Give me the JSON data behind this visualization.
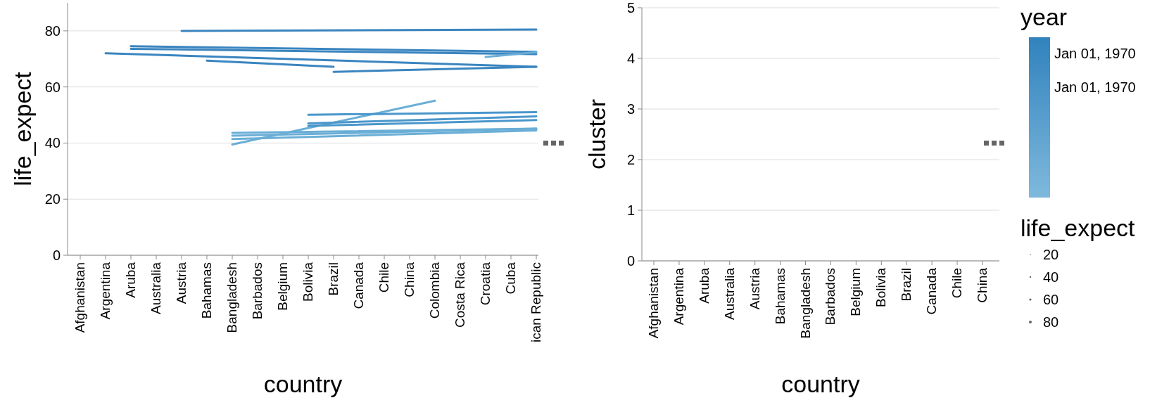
{
  "chart_data": [
    {
      "type": "line",
      "xlabel": "country",
      "ylabel": "life_expect",
      "categories": [
        "Afghanistan",
        "Argentina",
        "Aruba",
        "Australia",
        "Austria",
        "Bahamas",
        "Bangladesh",
        "Barbados",
        "Belgium",
        "Bolivia",
        "Brazil",
        "Canada",
        "Chile",
        "China",
        "Colombia",
        "Costa Rica",
        "Croatia",
        "Cuba",
        "ican Republic"
      ],
      "ylim": [
        0,
        90
      ],
      "yticks": [
        0,
        20,
        40,
        60,
        80
      ],
      "grid": "y",
      "series": [
        {
          "color": "#3a85c0",
          "x": [
            "Austria",
            "ican Republic"
          ],
          "values": [
            80,
            80.5
          ]
        },
        {
          "color": "#3a85c0",
          "x": [
            "Aruba",
            "ican Republic"
          ],
          "values": [
            74.5,
            72.5
          ]
        },
        {
          "color": "#3a85c0",
          "x": [
            "Aruba",
            "ican Republic"
          ],
          "values": [
            73.6,
            71.7
          ]
        },
        {
          "color": "#3a85c0",
          "x": [
            "Argentina",
            "ican Republic"
          ],
          "values": [
            72,
            67.2
          ]
        },
        {
          "color": "#3a85c0",
          "x": [
            "Bahamas",
            "Brazil"
          ],
          "values": [
            69.4,
            67.2
          ]
        },
        {
          "color": "#3a85c0",
          "x": [
            "Brazil",
            "ican Republic"
          ],
          "values": [
            65.4,
            67.2
          ]
        },
        {
          "color": "#6aaed6",
          "x": [
            "Croatia",
            "ican Republic"
          ],
          "values": [
            70.7,
            72.4
          ]
        },
        {
          "color": "#6aaed6",
          "x": [
            "Bangladesh",
            "ican Republic"
          ],
          "values": [
            43.6,
            45.1
          ]
        },
        {
          "color": "#6aaed6",
          "x": [
            "Bangladesh",
            "ican Republic"
          ],
          "values": [
            42.6,
            45.1
          ]
        },
        {
          "color": "#6aaed6",
          "x": [
            "Bangladesh",
            "ican Republic"
          ],
          "values": [
            41.4,
            44.5
          ]
        },
        {
          "color": "#6aaed6",
          "x": [
            "Bangladesh",
            "Colombia"
          ],
          "values": [
            39.5,
            55.1
          ]
        },
        {
          "color": "#4a96cb",
          "x": [
            "Bolivia",
            "ican Republic"
          ],
          "values": [
            50.1,
            51
          ]
        },
        {
          "color": "#4a96cb",
          "x": [
            "Bolivia",
            "ican Republic"
          ],
          "values": [
            47,
            49.5
          ]
        },
        {
          "color": "#4a96cb",
          "x": [
            "Bolivia",
            "ican Republic"
          ],
          "values": [
            46.1,
            48.2
          ]
        }
      ]
    },
    {
      "type": "line",
      "xlabel": "country",
      "ylabel": "cluster",
      "categories": [
        "Afghanistan",
        "Argentina",
        "Aruba",
        "Australia",
        "Austria",
        "Bahamas",
        "Bangladesh",
        "Barbados",
        "Belgium",
        "Bolivia",
        "Brazil",
        "Canada",
        "Chile",
        "China"
      ],
      "ylim": [
        0,
        5
      ],
      "yticks": [
        0,
        1,
        2,
        3,
        4,
        5
      ],
      "grid": "y",
      "annotations": [
        "year",
        "Jan 01, 1970",
        "Jan 01, 1970",
        "life_expect",
        "20",
        "40",
        "60",
        "80"
      ]
    }
  ]
}
